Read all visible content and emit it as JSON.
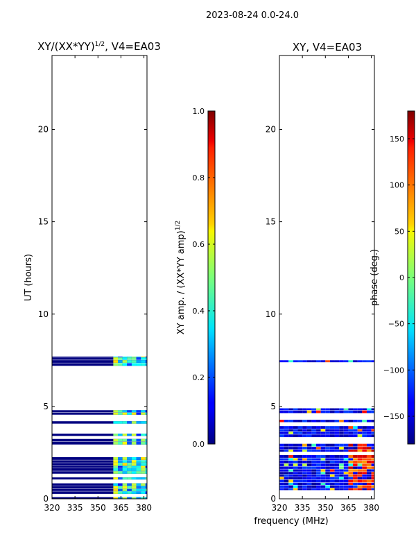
{
  "chart_data": [
    {
      "type": "heatmap",
      "suptitle": "2023-08-24 0.0-24.0",
      "title_text": "XY/(XX*YY)",
      "title_sup": "1/2",
      "title_tail": ", V4=EA03",
      "xlabel": "",
      "ylabel": "UT (hours)",
      "xlim": [
        320,
        382
      ],
      "ylim": [
        0,
        24
      ],
      "xticks": [
        "320",
        "335",
        "350",
        "365",
        "380"
      ],
      "yticks": [
        "0",
        "5",
        "10",
        "15",
        "20"
      ],
      "xtick_values": [
        320,
        335,
        350,
        365,
        380
      ],
      "ytick_values": [
        0,
        5,
        10,
        15,
        20
      ],
      "colorbar": {
        "label_text": "XY amp. / (XX*YY amp)",
        "label_sup": "1/2",
        "range": [
          0.0,
          1.0
        ],
        "ticks": [
          "0.0",
          "0.2",
          "0.4",
          "0.6",
          "0.8",
          "1.0"
        ],
        "tick_values": [
          0.0,
          0.2,
          0.4,
          0.6,
          0.8,
          1.0
        ]
      },
      "data_ut_ranges": [
        [
          0.0,
          4.9
        ],
        [
          7.2,
          7.7
        ]
      ],
      "freq_band_with_signal": [
        360,
        382
      ],
      "typical_value_low_band": 0.0,
      "typical_value_high_band": 0.4
    },
    {
      "type": "heatmap",
      "title": "XY, V4=EA03",
      "xlabel": "frequency (MHz)",
      "ylabel": "",
      "xlim": [
        320,
        382
      ],
      "ylim": [
        0,
        24
      ],
      "xticks": [
        "320",
        "335",
        "350",
        "365",
        "380"
      ],
      "yticks": [
        "0",
        "5",
        "10",
        "15",
        "20"
      ],
      "xtick_values": [
        320,
        335,
        350,
        365,
        380
      ],
      "ytick_values": [
        0,
        5,
        10,
        15,
        20
      ],
      "colorbar": {
        "label": "phase (deg.)",
        "range": [
          -180,
          180
        ],
        "ticks": [
          "−150",
          "−100",
          "−50",
          "0",
          "50",
          "100",
          "150"
        ],
        "tick_values": [
          -150,
          -100,
          -50,
          0,
          50,
          100,
          150
        ]
      },
      "data_ut_ranges": [
        [
          0.0,
          4.9
        ],
        [
          7.2,
          7.7
        ]
      ],
      "typical_phase_deg": -140,
      "hot_region_phase_deg": 120
    }
  ],
  "colors": {
    "background": "#ffffff",
    "axes": "#000000",
    "jet_low": "#00007f",
    "jet_high": "#7f0000"
  }
}
